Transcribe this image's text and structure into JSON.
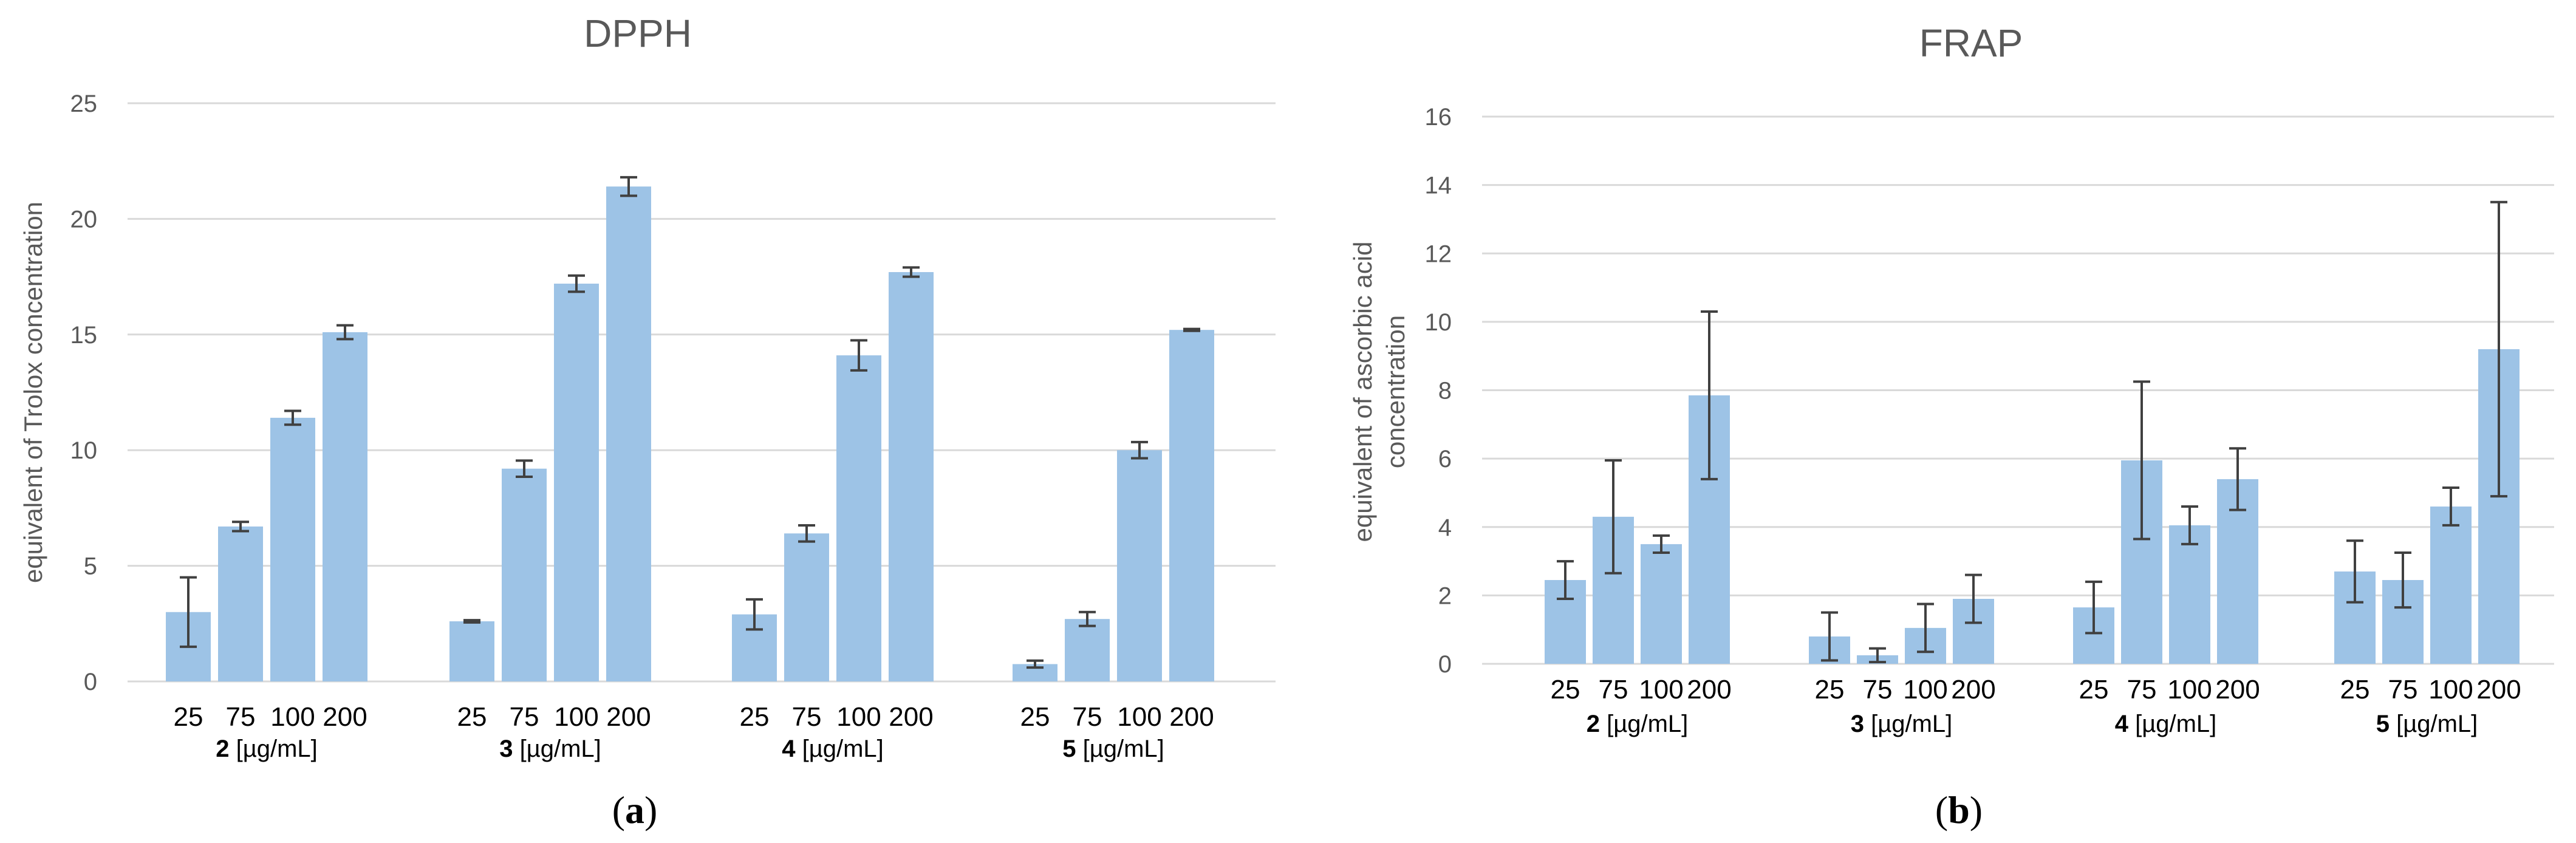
{
  "chart_data": [
    {
      "type": "bar",
      "title": "DPPH",
      "ylabel": "equivalent of Trolox concentration",
      "ylim": [
        0,
        25
      ],
      "yticks": [
        0,
        5,
        10,
        15,
        20,
        25
      ],
      "grid": true,
      "bar_color": "#9dc3e6",
      "error_color": "#404040",
      "categories": [
        "25",
        "75",
        "100",
        "200"
      ],
      "groups": [
        {
          "id": "2",
          "unit": "[µg/mL]",
          "values": [
            3.0,
            6.7,
            11.4,
            15.1
          ],
          "errors": [
            1.5,
            0.2,
            0.3,
            0.3
          ]
        },
        {
          "id": "3",
          "unit": "[µg/mL]",
          "values": [
            2.6,
            9.2,
            17.2,
            21.4
          ],
          "errors": [
            0.05,
            0.35,
            0.35,
            0.4
          ]
        },
        {
          "id": "4",
          "unit": "[µg/mL]",
          "values": [
            2.9,
            6.4,
            14.1,
            17.7
          ],
          "errors": [
            0.65,
            0.35,
            0.65,
            0.2
          ]
        },
        {
          "id": "5",
          "unit": "[µg/mL]",
          "values": [
            0.75,
            2.7,
            10.0,
            15.2
          ],
          "errors": [
            0.15,
            0.3,
            0.35,
            0.04
          ]
        }
      ],
      "panel_label": "a"
    },
    {
      "type": "bar",
      "title": "FRAP",
      "ylabel": [
        "equivalent of ascorbic acid",
        "concentration"
      ],
      "ylim": [
        0,
        16
      ],
      "yticks": [
        0,
        2,
        4,
        6,
        8,
        10,
        12,
        14,
        16
      ],
      "grid": true,
      "bar_color": "#9dc3e6",
      "error_color": "#404040",
      "categories": [
        "25",
        "75",
        "100",
        "200"
      ],
      "groups": [
        {
          "id": "2",
          "unit": "[µg/mL]",
          "values": [
            2.45,
            4.3,
            3.5,
            7.85
          ],
          "errors": [
            0.55,
            1.65,
            0.25,
            2.45
          ]
        },
        {
          "id": "3",
          "unit": "[µg/mL]",
          "values": [
            0.8,
            0.25,
            1.05,
            1.9
          ],
          "errors": [
            0.7,
            0.2,
            0.7,
            0.7
          ]
        },
        {
          "id": "4",
          "unit": "[µg/mL]",
          "values": [
            1.65,
            5.95,
            4.05,
            5.4
          ],
          "errors": [
            0.75,
            2.3,
            0.55,
            0.9
          ]
        },
        {
          "id": "5",
          "unit": "[µg/mL]",
          "values": [
            2.7,
            2.45,
            4.6,
            9.2
          ],
          "errors": [
            0.9,
            0.8,
            0.55,
            4.3
          ]
        }
      ],
      "panel_label": "b"
    }
  ]
}
